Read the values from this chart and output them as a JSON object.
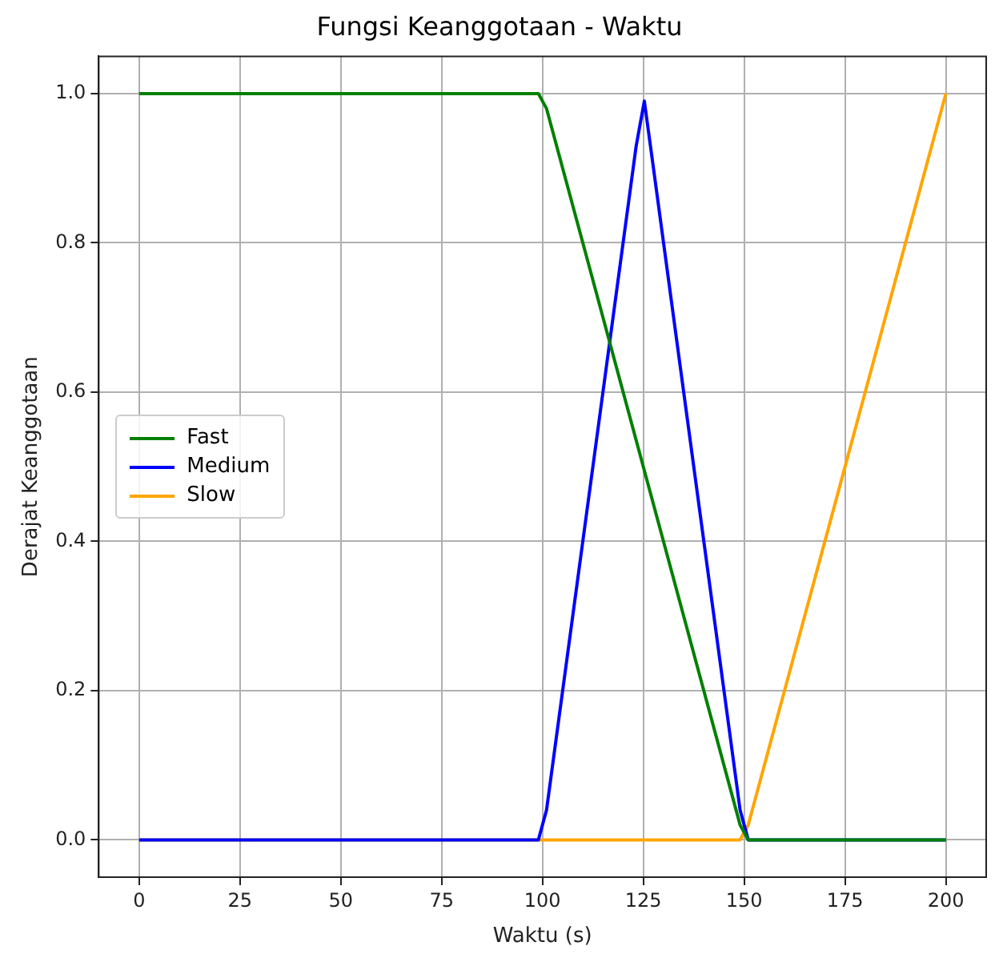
{
  "chart_data": {
    "type": "line",
    "title": "Fungsi Keanggotaan - Waktu",
    "xlabel": "Waktu (s)",
    "ylabel": "Derajat Keanggotaan",
    "xlim": [
      -10,
      210
    ],
    "xticks": [
      0,
      25,
      50,
      75,
      100,
      125,
      150,
      175,
      200
    ],
    "ylim": [
      -0.05,
      1.05
    ],
    "yticks": [
      {
        "value": 0,
        "label": "0.0"
      },
      {
        "value": 0.2,
        "label": "0.2"
      },
      {
        "value": 0.4,
        "label": "0.4"
      },
      {
        "value": 0.6,
        "label": "0.6"
      },
      {
        "value": 0.8,
        "label": "0.8"
      },
      {
        "value": 1,
        "label": "1.0"
      }
    ],
    "grid": true,
    "legend": "left",
    "marker": "none",
    "line_style": "solid",
    "series": [
      {
        "name": "Fast",
        "color": "#008000",
        "x": [
          0,
          98.99,
          101.01,
          148.99,
          151.01,
          200
        ],
        "values": [
          1,
          1,
          0.98,
          0.02,
          0,
          0
        ]
      },
      {
        "name": "Medium",
        "color": "#0000ff",
        "x": [
          0,
          98.99,
          101.01,
          123.23,
          125.25,
          127.27,
          148.99,
          151.01,
          200
        ],
        "values": [
          0,
          0,
          0.04,
          0.93,
          0.99,
          0.91,
          0.04,
          0,
          0
        ]
      },
      {
        "name": "Slow",
        "color": "#ffa500",
        "x": [
          0,
          148.99,
          151.01,
          200
        ],
        "values": [
          0,
          0,
          0.02,
          1
        ]
      }
    ]
  }
}
